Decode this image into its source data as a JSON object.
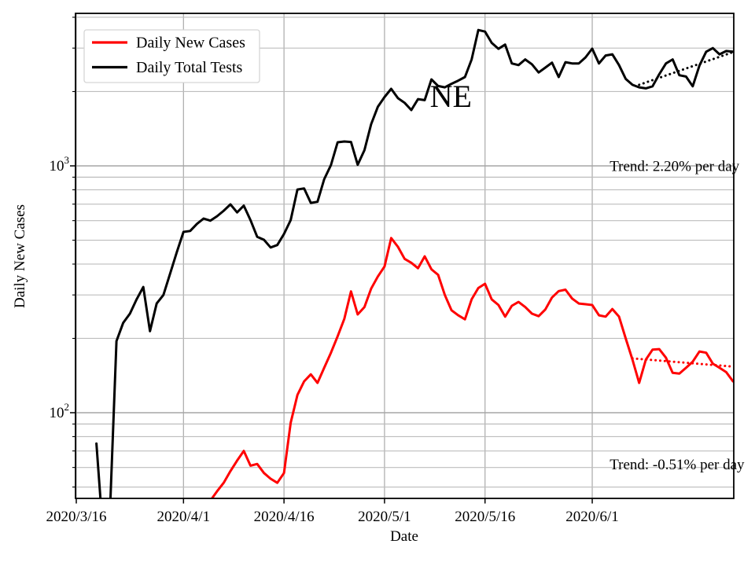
{
  "chart_data": {
    "type": "line",
    "title": "",
    "xlabel": "Date",
    "ylabel": "Daily New Cases",
    "yscale": "log",
    "ylim": [
      44,
      4150
    ],
    "grid": true,
    "x_day0_date": "2020/3/16",
    "x_ticks": [
      {
        "day": 0,
        "label": "2020/3/16"
      },
      {
        "day": 16,
        "label": "2020/4/1"
      },
      {
        "day": 31,
        "label": "2020/4/16"
      },
      {
        "day": 46,
        "label": "2020/5/1"
      },
      {
        "day": 61,
        "label": "2020/5/16"
      },
      {
        "day": 77,
        "label": "2020/6/1"
      }
    ],
    "y_ticks": [
      {
        "value": 100,
        "base": "10",
        "exp": "2"
      },
      {
        "value": 1000,
        "base": "10",
        "exp": "3"
      }
    ],
    "y_minor_gridlines": [
      50,
      60,
      70,
      80,
      90,
      200,
      300,
      400,
      500,
      600,
      700,
      800,
      900,
      2000,
      3000,
      4000
    ],
    "legend": {
      "position": "upper left"
    },
    "series": [
      {
        "name": "Daily New Cases",
        "color": "#ff0000",
        "values": [
          null,
          null,
          null,
          null,
          null,
          null,
          null,
          null,
          null,
          null,
          null,
          null,
          null,
          null,
          null,
          null,
          null,
          null,
          null,
          null,
          44,
          48,
          52,
          58,
          64,
          70,
          61,
          62,
          57,
          54,
          52,
          57,
          91,
          118,
          134,
          143,
          132,
          152,
          175,
          204,
          240,
          310,
          250,
          268,
          318,
          356,
          391,
          510,
          470,
          420,
          405,
          385,
          430,
          381,
          362,
          300,
          260,
          248,
          239,
          288,
          320,
          333,
          288,
          273,
          245,
          271,
          281,
          268,
          252,
          246,
          262,
          293,
          311,
          315,
          290,
          277,
          275,
          273,
          248,
          245,
          263,
          245,
          200,
          164,
          132,
          164,
          180,
          181,
          167,
          145,
          144,
          152,
          161,
          177,
          175,
          158,
          152,
          146,
          134
        ]
      },
      {
        "name": "Daily Total Tests",
        "color": "#000000",
        "values": [
          null,
          null,
          null,
          75,
          32,
          38,
          195,
          231,
          252,
          288,
          323,
          214,
          277,
          300,
          366,
          447,
          540,
          545,
          582,
          612,
          600,
          625,
          658,
          698,
          648,
          690,
          603,
          516,
          502,
          467,
          478,
          530,
          603,
          802,
          810,
          708,
          715,
          883,
          1007,
          1246,
          1255,
          1250,
          1010,
          1158,
          1475,
          1734,
          1900,
          2051,
          1880,
          1800,
          1683,
          1864,
          1846,
          2240,
          2106,
          2080,
          2150,
          2215,
          2290,
          2700,
          3550,
          3500,
          3150,
          2980,
          3100,
          2600,
          2560,
          2700,
          2580,
          2390,
          2500,
          2620,
          2290,
          2630,
          2600,
          2600,
          2750,
          2985,
          2600,
          2800,
          2830,
          2560,
          2250,
          2130,
          2080,
          2060,
          2100,
          2350,
          2600,
          2700,
          2330,
          2300,
          2100,
          2550,
          2900,
          3000,
          2830,
          2920,
          2900
        ]
      }
    ],
    "trendlines": [
      {
        "series": "Daily Total Tests",
        "color": "#000000",
        "style": "dotted",
        "start_day": 84,
        "end_day": 98,
        "start_value": 2130,
        "rate_pct_per_day": 2.2
      },
      {
        "series": "Daily New Cases",
        "color": "#ff0000",
        "style": "dotted",
        "start_day": 83,
        "end_day": 98,
        "start_value": 166,
        "rate_pct_per_day": -0.51
      }
    ],
    "annotations": [
      {
        "text": "NE",
        "x_day": 55.9,
        "y_value": 1920,
        "anchor": "middle",
        "font_px": 40
      },
      {
        "text": "Trend: 2.20% per day",
        "x_day": 79.6,
        "y_value": 1000,
        "anchor": "start",
        "font_px": 19
      },
      {
        "text": "Trend: -0.51% per day",
        "x_day": 79.6,
        "y_value": 62,
        "anchor": "start",
        "font_px": 19
      }
    ]
  }
}
